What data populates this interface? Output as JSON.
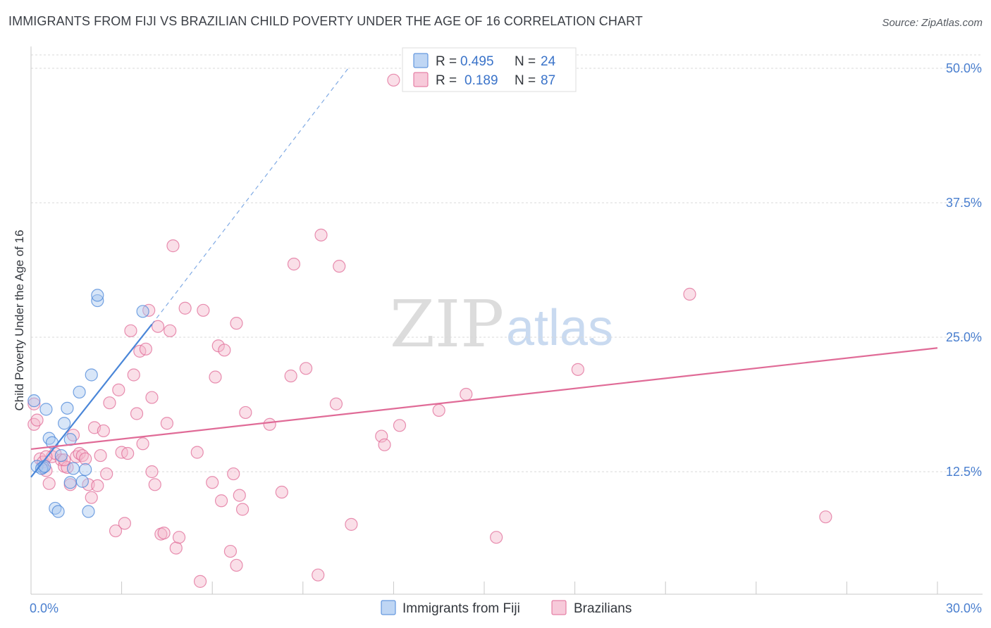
{
  "title": "IMMIGRANTS FROM FIJI VS BRAZILIAN CHILD POVERTY UNDER THE AGE OF 16 CORRELATION CHART",
  "source": "Source: ZipAtlas.com",
  "watermark": {
    "zip": "ZIP",
    "atlas": "atlas"
  },
  "colors": {
    "fiji": "#4a86d8",
    "fiji_fill": "#a9c8f0",
    "brazil": "#e06b97",
    "brazil_fill": "#f4b8cd",
    "tick_label": "#4a7fcf",
    "grid": "#d9d9d9"
  },
  "legend": {
    "rows": [
      {
        "series": "fiji",
        "r_label": "R =",
        "r_value": "0.495",
        "n_label": "N =",
        "n_value": "24"
      },
      {
        "series": "brazil",
        "r_label": "R =",
        "r_value": "0.189",
        "n_label": "N =",
        "n_value": "87"
      }
    ]
  },
  "chart_data": {
    "type": "scatter",
    "xlabel": "",
    "ylabel": "Child Poverty Under the Age of 16",
    "xlim": [
      0,
      30
    ],
    "ylim": [
      0,
      52
    ],
    "x_tick_labels": [
      {
        "value": 0,
        "label": "0.0%"
      },
      {
        "value": 30,
        "label": "30.0%"
      }
    ],
    "x_minor_ticks": [
      0,
      3,
      6,
      9,
      12,
      15,
      18,
      21,
      24,
      27,
      30
    ],
    "y_ticks": [
      {
        "value": 12.5,
        "label": "12.5%"
      },
      {
        "value": 25,
        "label": "25.0%"
      },
      {
        "value": 37.5,
        "label": "37.5%"
      },
      {
        "value": 50,
        "label": "50.0%"
      }
    ],
    "series": [
      {
        "name": "Immigrants from Fiji",
        "key": "fiji",
        "points": [
          [
            0.1,
            19.1
          ],
          [
            0.2,
            13.0
          ],
          [
            0.4,
            12.9
          ],
          [
            0.5,
            18.3
          ],
          [
            0.6,
            15.6
          ],
          [
            0.7,
            15.2
          ],
          [
            0.8,
            9.1
          ],
          [
            0.9,
            8.8
          ],
          [
            1.0,
            14.0
          ],
          [
            1.1,
            17.0
          ],
          [
            1.2,
            18.4
          ],
          [
            1.3,
            15.5
          ],
          [
            1.3,
            11.5
          ],
          [
            1.4,
            12.8
          ],
          [
            1.6,
            19.9
          ],
          [
            1.7,
            11.6
          ],
          [
            1.8,
            12.7
          ],
          [
            1.9,
            8.8
          ],
          [
            2.0,
            21.5
          ],
          [
            2.2,
            28.4
          ],
          [
            2.2,
            28.9
          ],
          [
            3.7,
            27.4
          ],
          [
            0.35,
            12.8
          ],
          [
            0.45,
            13.0
          ]
        ],
        "trend": {
          "x0": 0.0,
          "y0": 12.0,
          "x1": 4.0,
          "y1": 26.2,
          "dash_x1": 10.5,
          "dash_y1": 50.0
        }
      },
      {
        "name": "Brazilians",
        "key": "brazil",
        "points": [
          [
            0.1,
            18.8
          ],
          [
            0.1,
            16.9
          ],
          [
            0.3,
            13.7
          ],
          [
            0.4,
            13.4
          ],
          [
            0.5,
            12.6
          ],
          [
            0.6,
            11.4
          ],
          [
            0.7,
            13.9
          ],
          [
            0.8,
            14.2
          ],
          [
            1.0,
            13.6
          ],
          [
            1.1,
            13.0
          ],
          [
            1.2,
            12.9
          ],
          [
            1.3,
            11.3
          ],
          [
            1.4,
            15.9
          ],
          [
            1.5,
            13.9
          ],
          [
            1.6,
            14.2
          ],
          [
            1.7,
            14.0
          ],
          [
            1.8,
            13.7
          ],
          [
            1.9,
            11.3
          ],
          [
            2.0,
            10.1
          ],
          [
            2.1,
            16.6
          ],
          [
            2.2,
            11.2
          ],
          [
            2.3,
            14.0
          ],
          [
            2.4,
            16.3
          ],
          [
            2.5,
            12.3
          ],
          [
            2.6,
            18.9
          ],
          [
            2.8,
            7.0
          ],
          [
            2.9,
            20.1
          ],
          [
            3.0,
            14.3
          ],
          [
            3.1,
            7.7
          ],
          [
            3.2,
            14.2
          ],
          [
            3.3,
            25.6
          ],
          [
            3.4,
            21.5
          ],
          [
            3.5,
            17.9
          ],
          [
            3.6,
            23.7
          ],
          [
            3.7,
            15.1
          ],
          [
            3.8,
            23.9
          ],
          [
            3.9,
            27.5
          ],
          [
            4.0,
            12.5
          ],
          [
            4.0,
            19.4
          ],
          [
            4.1,
            11.3
          ],
          [
            4.2,
            26.0
          ],
          [
            4.3,
            6.7
          ],
          [
            4.4,
            6.8
          ],
          [
            4.5,
            17.0
          ],
          [
            4.6,
            25.6
          ],
          [
            4.7,
            33.5
          ],
          [
            4.8,
            5.4
          ],
          [
            4.9,
            6.4
          ],
          [
            5.1,
            27.7
          ],
          [
            5.5,
            14.3
          ],
          [
            5.6,
            2.3
          ],
          [
            5.7,
            27.5
          ],
          [
            6.0,
            11.5
          ],
          [
            6.1,
            21.3
          ],
          [
            6.2,
            24.2
          ],
          [
            6.3,
            9.8
          ],
          [
            6.4,
            23.8
          ],
          [
            6.6,
            5.1
          ],
          [
            6.7,
            12.3
          ],
          [
            6.8,
            3.8
          ],
          [
            6.8,
            26.3
          ],
          [
            6.9,
            10.3
          ],
          [
            7.0,
            9.0
          ],
          [
            7.1,
            18.0
          ],
          [
            7.9,
            16.9
          ],
          [
            8.3,
            10.6
          ],
          [
            8.6,
            21.4
          ],
          [
            8.7,
            31.8
          ],
          [
            9.1,
            22.1
          ],
          [
            9.5,
            2.9
          ],
          [
            9.6,
            34.5
          ],
          [
            10.1,
            18.8
          ],
          [
            10.2,
            31.6
          ],
          [
            10.6,
            7.6
          ],
          [
            11.6,
            15.8
          ],
          [
            11.7,
            15.0
          ],
          [
            12.0,
            48.9
          ],
          [
            12.2,
            16.8
          ],
          [
            13.5,
            18.2
          ],
          [
            14.4,
            19.7
          ],
          [
            15.4,
            6.4
          ],
          [
            18.1,
            22.0
          ],
          [
            21.8,
            29.0
          ],
          [
            26.3,
            8.3
          ],
          [
            0.2,
            17.3
          ],
          [
            0.5,
            13.9
          ],
          [
            1.1,
            13.6
          ]
        ],
        "trend": {
          "x0": 0.0,
          "y0": 14.6,
          "x1": 30.0,
          "y1": 24.0
        }
      }
    ]
  },
  "bottom_legend": [
    {
      "series": "fiji",
      "label": "Immigrants from Fiji"
    },
    {
      "series": "brazil",
      "label": "Brazilians"
    }
  ]
}
